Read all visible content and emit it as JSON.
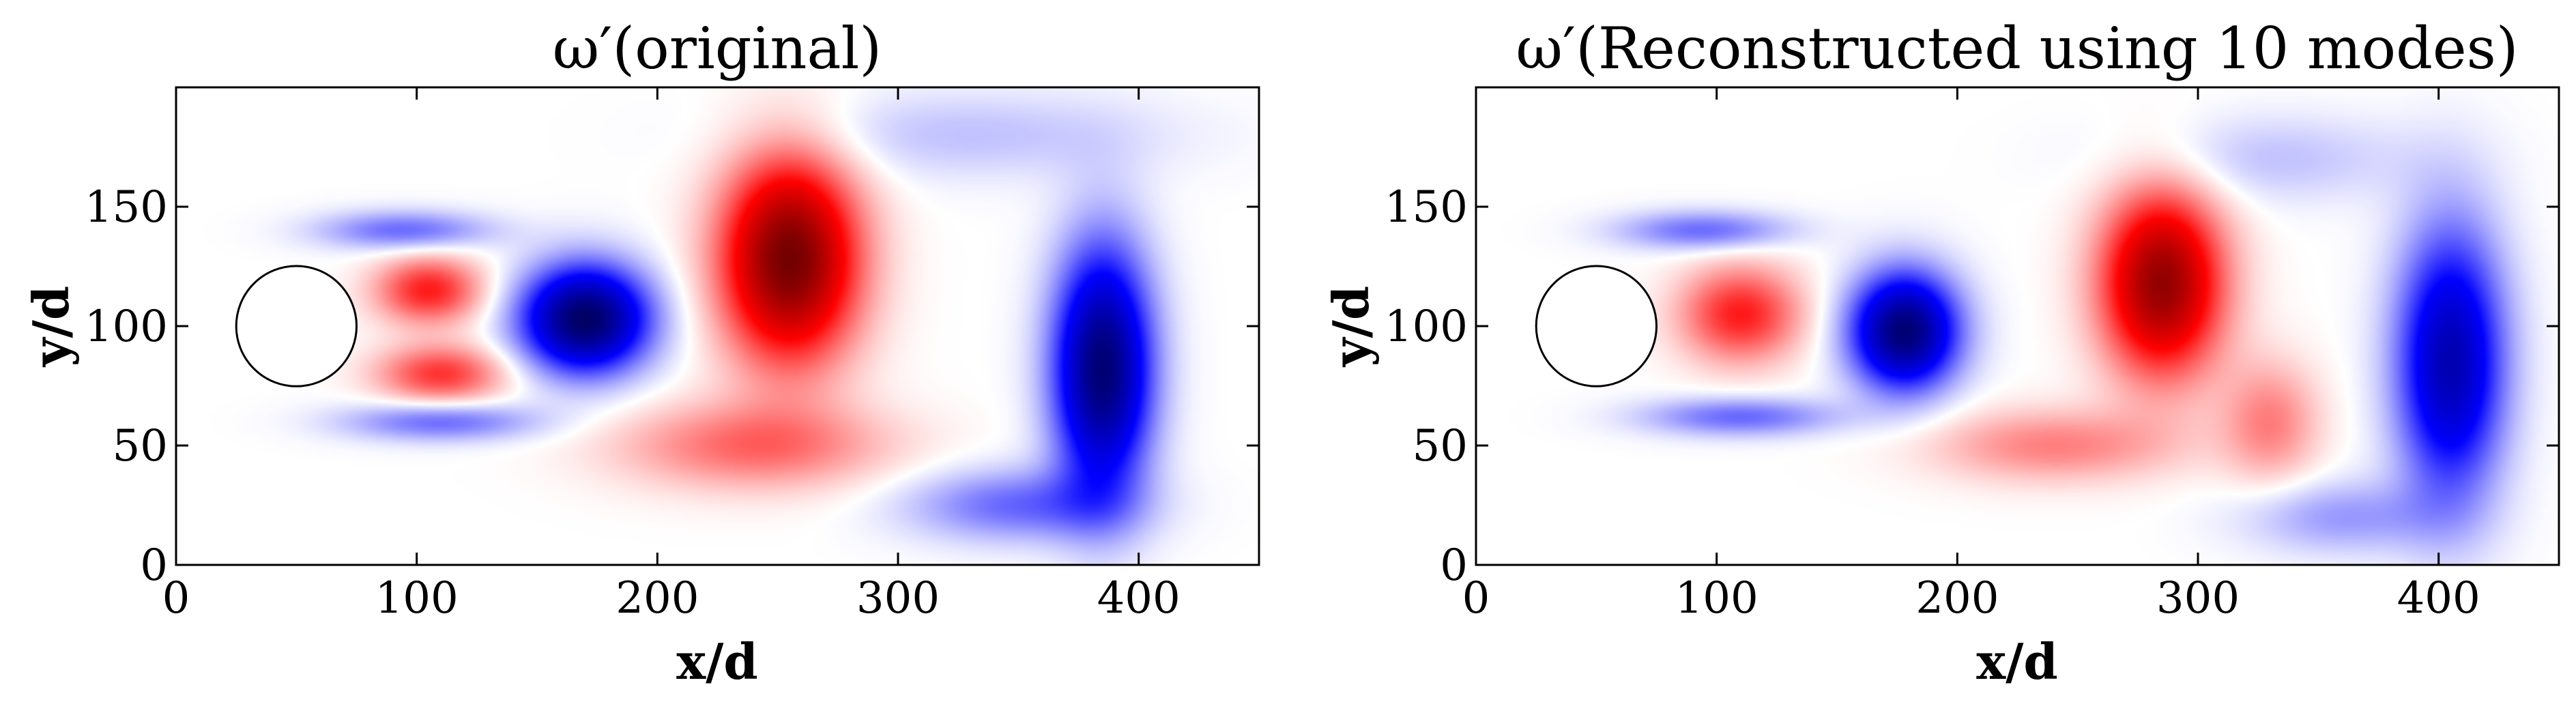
{
  "chart_data": [
    {
      "type": "heatmap",
      "title": "ω′(original)",
      "xlabel": "x/d",
      "ylabel": "y/d",
      "xlim": [
        0,
        450
      ],
      "ylim": [
        0,
        200
      ],
      "xticks": [
        0,
        100,
        200,
        300,
        400
      ],
      "yticks": [
        0,
        50,
        100,
        150
      ],
      "xtick_labels": [
        "0",
        "100",
        "200",
        "300",
        "400"
      ],
      "ytick_labels": [
        "0",
        "50",
        "100",
        "150"
      ],
      "colormap": "seismic (blue negative, white zero, red positive)",
      "cylinder": {
        "center": [
          50,
          100
        ],
        "radius": 25
      },
      "vortices": [
        {
          "x": 105,
          "y": 115,
          "sx": 22,
          "sy": 14,
          "value": 0.45
        },
        {
          "x": 110,
          "y": 80,
          "sx": 26,
          "sy": 12,
          "value": 0.4
        },
        {
          "x": 95,
          "y": 140,
          "sx": 35,
          "sy": 8,
          "value": -0.3
        },
        {
          "x": 110,
          "y": 60,
          "sx": 40,
          "sy": 8,
          "value": -0.3
        },
        {
          "x": 170,
          "y": 103,
          "sx": 26,
          "sy": 22,
          "value": -1.0
        },
        {
          "x": 255,
          "y": 128,
          "sx": 28,
          "sy": 42,
          "value": 0.95
        },
        {
          "x": 385,
          "y": 82,
          "sx": 20,
          "sy": 50,
          "value": -0.95
        },
        {
          "x": 240,
          "y": 50,
          "sx": 55,
          "sy": 18,
          "value": 0.3
        },
        {
          "x": 330,
          "y": 180,
          "sx": 80,
          "sy": 18,
          "value": -0.12
        },
        {
          "x": 350,
          "y": 25,
          "sx": 45,
          "sy": 15,
          "value": -0.3
        }
      ]
    },
    {
      "type": "heatmap",
      "title": "ω′(Reconstructed using 10 modes)",
      "xlabel": "x/d",
      "ylabel": "y/d",
      "xlim": [
        0,
        450
      ],
      "ylim": [
        0,
        200
      ],
      "xticks": [
        0,
        100,
        200,
        300,
        400
      ],
      "yticks": [
        0,
        50,
        100,
        150
      ],
      "xtick_labels": [
        "0",
        "100",
        "200",
        "300",
        "400"
      ],
      "ytick_labels": [
        "0",
        "50",
        "100",
        "150"
      ],
      "colormap": "seismic (blue negative, white zero, red positive)",
      "cylinder": {
        "center": [
          50,
          100
        ],
        "radius": 25
      },
      "vortices": [
        {
          "x": 110,
          "y": 105,
          "sx": 25,
          "sy": 20,
          "value": 0.45
        },
        {
          "x": 95,
          "y": 140,
          "sx": 35,
          "sy": 8,
          "value": -0.3
        },
        {
          "x": 110,
          "y": 62,
          "sx": 40,
          "sy": 8,
          "value": -0.3
        },
        {
          "x": 178,
          "y": 98,
          "sx": 22,
          "sy": 24,
          "value": -0.95
        },
        {
          "x": 285,
          "y": 118,
          "sx": 25,
          "sy": 38,
          "value": 0.85
        },
        {
          "x": 405,
          "y": 85,
          "sx": 22,
          "sy": 55,
          "value": -0.75
        },
        {
          "x": 240,
          "y": 50,
          "sx": 50,
          "sy": 15,
          "value": 0.25
        },
        {
          "x": 330,
          "y": 60,
          "sx": 20,
          "sy": 25,
          "value": 0.25
        },
        {
          "x": 330,
          "y": 170,
          "sx": 60,
          "sy": 18,
          "value": -0.12
        },
        {
          "x": 360,
          "y": 20,
          "sx": 40,
          "sy": 15,
          "value": -0.2
        }
      ]
    }
  ]
}
